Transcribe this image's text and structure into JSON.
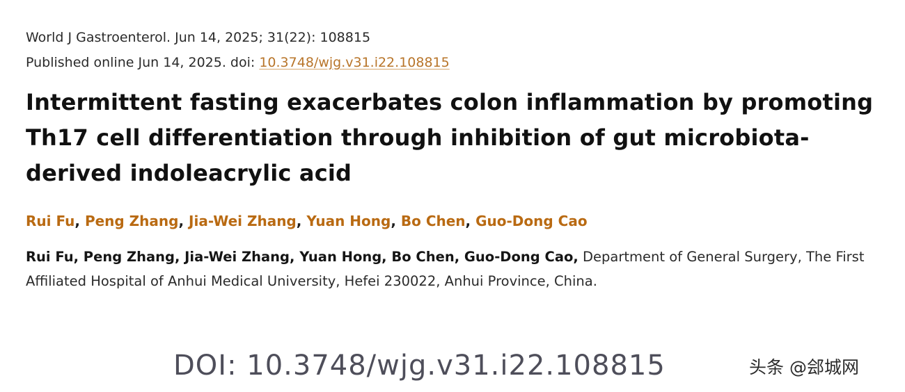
{
  "citation": {
    "journal_line": "World J Gastroenterol. Jun 14, 2025; 31(22): 108815",
    "published_prefix": "Published online Jun 14, 2025. doi: ",
    "doi_link": "10.3748/wjg.v31.i22.108815"
  },
  "article": {
    "title": "Intermittent fasting exacerbates colon inflammation by promoting Th17 cell differentiation through inhibition of gut microbiota-derived indoleacrylic acid"
  },
  "authors": [
    "Rui Fu",
    "Peng Zhang",
    "Jia-Wei Zhang",
    "Yuan Hong",
    "Bo Chen",
    "Guo-Dong Cao"
  ],
  "author_separator": ", ",
  "affiliation": {
    "authors": "Rui Fu, Peng Zhang, Jia-Wei Zhang, Yuan Hong, Bo Chen, Guo-Dong Cao,",
    "text": " Department of General Surgery, The First Affiliated Hospital of Anhui Medical University, Hefei 230022, Anhui Province, China."
  },
  "overlay": {
    "doi_watermark": "DOI: 10.3748/wjg.v31.i22.108815",
    "source_badge": "头条 @郐城网"
  },
  "colors": {
    "author_link": "#b96a12",
    "doi_link": "#b8752a",
    "title": "#111111"
  }
}
